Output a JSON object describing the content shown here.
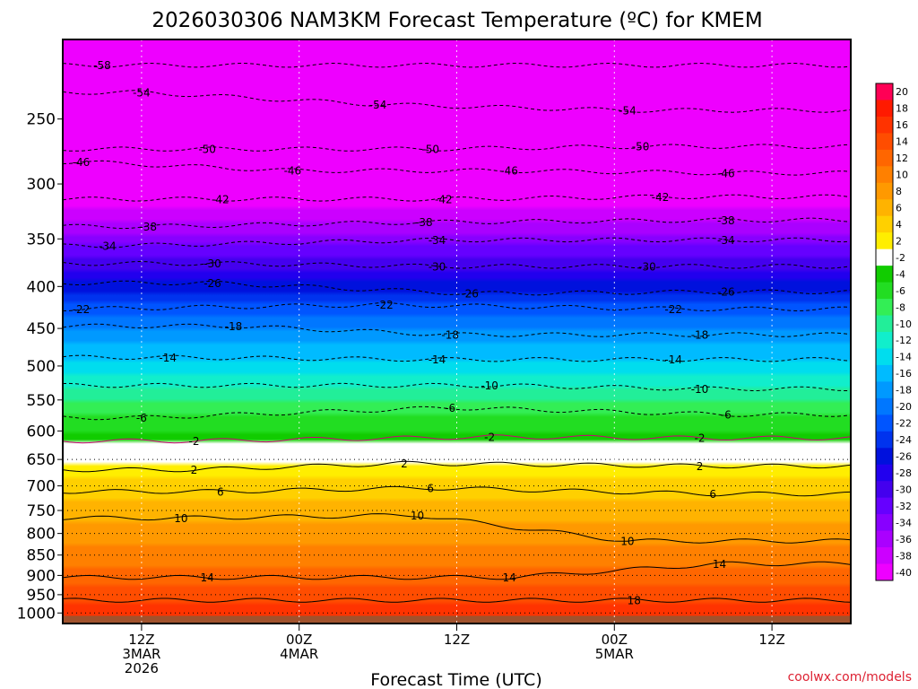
{
  "chart_data": {
    "type": "heatmap",
    "title": "2026030306 NAM3KM Forecast Temperature (ºC) for KMEM",
    "xlabel": "Forecast Time (UTC)",
    "ylabel": "",
    "credit": "coolwx.com/models",
    "x_hours_range": [
      0,
      60
    ],
    "x_ticks": [
      {
        "hour": 6,
        "lines": [
          "12Z",
          "3MAR",
          "2026"
        ]
      },
      {
        "hour": 18,
        "lines": [
          "00Z",
          "4MAR"
        ]
      },
      {
        "hour": 30,
        "lines": [
          "12Z"
        ]
      },
      {
        "hour": 42,
        "lines": [
          "00Z",
          "5MAR"
        ]
      },
      {
        "hour": 54,
        "lines": [
          "12Z"
        ]
      }
    ],
    "y_pressure_range": [
      1030,
      200
    ],
    "y_ticks": [
      250,
      300,
      350,
      400,
      450,
      500,
      550,
      600,
      650,
      700,
      750,
      800,
      850,
      900,
      950,
      1000
    ],
    "colorbar_labels": [
      20,
      18,
      16,
      14,
      12,
      10,
      8,
      6,
      4,
      2,
      -2,
      -4,
      -6,
      -8,
      -10,
      -12,
      -14,
      -16,
      -18,
      -20,
      -22,
      -24,
      -26,
      -28,
      -30,
      -32,
      -34,
      -36,
      -38,
      -40
    ],
    "colorbar_colors": [
      "#ff0055",
      "#ff1a00",
      "#ff3300",
      "#ff4d00",
      "#ff6600",
      "#ff8000",
      "#ff9900",
      "#ffb300",
      "#ffd000",
      "#ffee00",
      "#ffffff",
      "#11cc00",
      "#22dd22",
      "#33ee55",
      "#22ee99",
      "#11eecc",
      "#00ddee",
      "#00bbff",
      "#0099ff",
      "#0077ff",
      "#0055ff",
      "#0033ee",
      "#0011dd",
      "#2200ee",
      "#4400ee",
      "#6600ff",
      "#8800ff",
      "#aa00ff",
      "#cc00ff",
      "#ee00ff"
    ],
    "temperature_profile": [
      {
        "pressure": 1000,
        "temp": 17
      },
      {
        "pressure": 950,
        "temp": 15
      },
      {
        "pressure": 900,
        "temp": 13
      },
      {
        "pressure": 850,
        "temp": 11
      },
      {
        "pressure": 800,
        "temp": 9
      },
      {
        "pressure": 750,
        "temp": 7
      },
      {
        "pressure": 700,
        "temp": 5
      },
      {
        "pressure": 650,
        "temp": 1
      },
      {
        "pressure": 600,
        "temp": -4
      },
      {
        "pressure": 550,
        "temp": -8
      },
      {
        "pressure": 500,
        "temp": -13
      },
      {
        "pressure": 450,
        "temp": -18
      },
      {
        "pressure": 400,
        "temp": -25
      },
      {
        "pressure": 350,
        "temp": -33
      },
      {
        "pressure": 300,
        "temp": -42
      },
      {
        "pressure": 250,
        "temp": -51
      },
      {
        "pressure": 200,
        "temp": -58
      }
    ],
    "contour_labels": [
      {
        "label": "-58",
        "hour": 3,
        "pressure": 215
      },
      {
        "label": "-54",
        "hour": 6,
        "pressure": 232
      },
      {
        "label": "-54",
        "hour": 24,
        "pressure": 240
      },
      {
        "label": "-54",
        "hour": 43,
        "pressure": 244
      },
      {
        "label": "-50",
        "hour": 11,
        "pressure": 272
      },
      {
        "label": "-50",
        "hour": 28,
        "pressure": 272
      },
      {
        "label": "-50",
        "hour": 44,
        "pressure": 270
      },
      {
        "label": "-46",
        "hour": 1.4,
        "pressure": 282
      },
      {
        "label": "-46",
        "hour": 17.5,
        "pressure": 289
      },
      {
        "label": "-46",
        "hour": 34,
        "pressure": 289
      },
      {
        "label": "-46",
        "hour": 50.5,
        "pressure": 291
      },
      {
        "label": "-42",
        "hour": 12,
        "pressure": 313
      },
      {
        "label": "-42",
        "hour": 29,
        "pressure": 313
      },
      {
        "label": "-42",
        "hour": 45.5,
        "pressure": 311
      },
      {
        "label": "-38",
        "hour": 6.5,
        "pressure": 338
      },
      {
        "label": "-38",
        "hour": 27.5,
        "pressure": 334
      },
      {
        "label": "-38",
        "hour": 50.5,
        "pressure": 332
      },
      {
        "label": "-34",
        "hour": 3.4,
        "pressure": 357
      },
      {
        "label": "-34",
        "hour": 28.5,
        "pressure": 351
      },
      {
        "label": "-34",
        "hour": 50.5,
        "pressure": 351
      },
      {
        "label": "-30",
        "hour": 11.4,
        "pressure": 375
      },
      {
        "label": "-30",
        "hour": 28.5,
        "pressure": 378
      },
      {
        "label": "-30",
        "hour": 44.5,
        "pressure": 378
      },
      {
        "label": "-26",
        "hour": 11.4,
        "pressure": 396
      },
      {
        "label": "-26",
        "hour": 31,
        "pressure": 408
      },
      {
        "label": "-26",
        "hour": 50.5,
        "pressure": 406
      },
      {
        "label": "-22",
        "hour": 1.4,
        "pressure": 426
      },
      {
        "label": "-22",
        "hour": 24.5,
        "pressure": 421
      },
      {
        "label": "-22",
        "hour": 46.5,
        "pressure": 426
      },
      {
        "label": "-18",
        "hour": 13,
        "pressure": 447
      },
      {
        "label": "-18",
        "hour": 29.5,
        "pressure": 458
      },
      {
        "label": "-18",
        "hour": 48.5,
        "pressure": 458
      },
      {
        "label": "-14",
        "hour": 8,
        "pressure": 488
      },
      {
        "label": "-14",
        "hour": 28.5,
        "pressure": 491
      },
      {
        "label": "-14",
        "hour": 46.5,
        "pressure": 491
      },
      {
        "label": "-10",
        "hour": 32.5,
        "pressure": 528
      },
      {
        "label": "-10",
        "hour": 48.5,
        "pressure": 533
      },
      {
        "label": "-6",
        "hour": 6,
        "pressure": 578
      },
      {
        "label": "-6",
        "hour": 29.5,
        "pressure": 562
      },
      {
        "label": "-6",
        "hour": 50.5,
        "pressure": 573
      },
      {
        "label": "-2",
        "hour": 10,
        "pressure": 617
      },
      {
        "label": "-2",
        "hour": 32.5,
        "pressure": 610
      },
      {
        "label": "-2",
        "hour": 48.5,
        "pressure": 612
      },
      {
        "label": "2",
        "hour": 10,
        "pressure": 669
      },
      {
        "label": "2",
        "hour": 26,
        "pressure": 657
      },
      {
        "label": "2",
        "hour": 48.5,
        "pressure": 662
      },
      {
        "label": "6",
        "hour": 12,
        "pressure": 711
      },
      {
        "label": "6",
        "hour": 28,
        "pressure": 704
      },
      {
        "label": "6",
        "hour": 49.5,
        "pressure": 716
      },
      {
        "label": "10",
        "hour": 9,
        "pressure": 766
      },
      {
        "label": "10",
        "hour": 27,
        "pressure": 760
      },
      {
        "label": "10",
        "hour": 43,
        "pressure": 817
      },
      {
        "label": "14",
        "hour": 11,
        "pressure": 905
      },
      {
        "label": "14",
        "hour": 34,
        "pressure": 905
      },
      {
        "label": "14",
        "hour": 50,
        "pressure": 871
      },
      {
        "label": "18",
        "hour": 43.5,
        "pressure": 965
      }
    ]
  }
}
